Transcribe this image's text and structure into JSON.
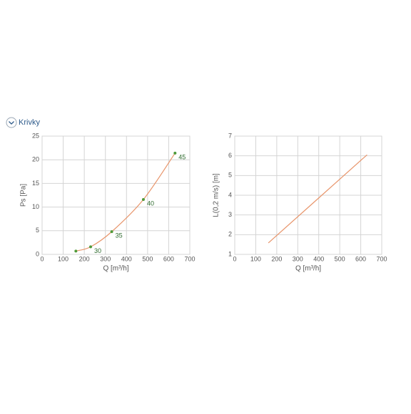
{
  "section_title": "Krivky",
  "chart_data": [
    {
      "type": "line",
      "x_label": "Q [m³/h]",
      "y_label": "Ps [Pa]",
      "xlim": [
        0,
        700
      ],
      "xticks": [
        0,
        100,
        200,
        300,
        400,
        500,
        600,
        700
      ],
      "ylim": [
        0,
        25
      ],
      "yticks": [
        0,
        5,
        10,
        15,
        20,
        25
      ],
      "grid": true,
      "series": [
        {
          "color": "#e8956b",
          "marker_color": "#4f9a3a",
          "x": [
            160,
            230,
            330,
            480,
            630
          ],
          "values": [
            0.7,
            1.6,
            4.8,
            11.6,
            21.4
          ],
          "point_labels": [
            null,
            30,
            35,
            40,
            45
          ]
        }
      ]
    },
    {
      "type": "line",
      "x_label": "Q [m³/h]",
      "y_label": "L(0,2 m/s) [m]",
      "xlim": [
        0,
        700
      ],
      "xticks": [
        0,
        100,
        200,
        300,
        400,
        500,
        600,
        700
      ],
      "ylim": [
        1,
        7
      ],
      "yticks": [
        1,
        2,
        3,
        4,
        5,
        6,
        7
      ],
      "grid": true,
      "series": [
        {
          "color": "#e8956b",
          "x": [
            160,
            630
          ],
          "values": [
            1.58,
            6.05
          ]
        }
      ]
    }
  ]
}
